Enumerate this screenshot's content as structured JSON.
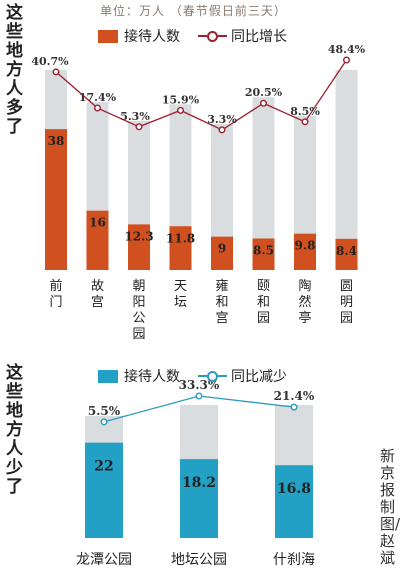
{
  "header": {
    "left_label_top": "这些地方人多了",
    "left_label_bottom": "这些地方人少了",
    "unit_note": "单位：万人 （春节假日前三天）",
    "credit": "新京报制图/赵斌"
  },
  "colors": {
    "bar_top": "#d0501f",
    "bar_bottom": "#22a1c5",
    "bar_background": "#d9dddf",
    "line_top": "#9b2030",
    "line_bottom": "#2a9bbd"
  },
  "chart_data": [
    {
      "type": "bar",
      "title": "",
      "legend": [
        "接待人数",
        "同比增长"
      ],
      "categories": [
        "前门",
        "故宫",
        "朝阳公园",
        "天坛",
        "雍和宫",
        "颐和园",
        "陶然亭",
        "圆明园"
      ],
      "series": [
        {
          "name": "接待人数",
          "values": [
            38,
            16,
            12.3,
            11.8,
            9,
            8.5,
            9.8,
            8.4
          ],
          "labels": [
            "38",
            "16",
            "12.3",
            "11.8",
            "9",
            "8.5",
            "9.8",
            "8.4"
          ]
        },
        {
          "name": "同比增长",
          "type": "line",
          "values": [
            40.7,
            17.4,
            5.3,
            15.9,
            3.3,
            20.5,
            8.5,
            48.4
          ],
          "labels": [
            "40.7%",
            "17.4%",
            "5.3%",
            "15.9%",
            "3.3%",
            "20.5%",
            "8.5%",
            "48.4%"
          ]
        }
      ],
      "ylim": [
        0,
        58
      ]
    },
    {
      "type": "bar",
      "title": "",
      "legend": [
        "接待人数",
        "同比减少"
      ],
      "categories": [
        "龙潭公园",
        "地坛公园",
        "什刹海"
      ],
      "series": [
        {
          "name": "接待人数",
          "values": [
            22,
            18.2,
            16.8
          ],
          "labels": [
            "22",
            "18.2",
            "16.8"
          ]
        },
        {
          "name": "同比减少",
          "type": "line",
          "values": [
            5.5,
            33.3,
            21.4
          ],
          "labels": [
            "5.5%",
            "33.3%",
            "21.4%"
          ]
        }
      ],
      "ylim": [
        0,
        33
      ]
    }
  ]
}
